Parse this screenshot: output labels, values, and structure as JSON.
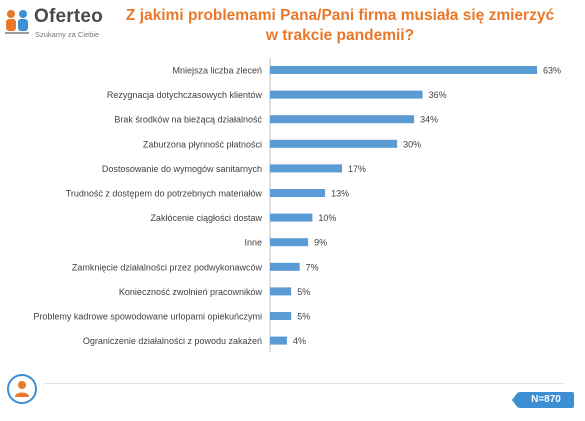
{
  "brand": {
    "name": "Oferteo",
    "tagline": "Szukamy za Ciebie"
  },
  "chart_data": {
    "type": "bar",
    "orientation": "horizontal",
    "title_lines": [
      "Z jakimi problemami Pana/Pani firma musiała się zmierzyć",
      "w trakcie pandemii?"
    ],
    "categories": [
      "Mniejsza liczba zleceń",
      "Rezygnacja dotychczasowych klientów",
      "Brak środków na bieżącą działalność",
      "Zaburzona płynność płatności",
      "Dostosowanie do wymogów sanitarnych",
      "Trudność z dostępem do potrzebnych materiałów",
      "Zakłócenie ciągłości dostaw",
      "Inne",
      "Zamknięcie działalności przez podwykonawców",
      "Konieczność zwolnień pracowników",
      "Problemy kadrowe spowodowane urlopami opiekuńczymi",
      "Ograniczenie działalności z powodu zakażeń"
    ],
    "values": [
      63,
      36,
      34,
      30,
      17,
      13,
      10,
      9,
      7,
      5,
      5,
      4
    ],
    "value_labels": [
      "63%",
      "36%",
      "34%",
      "30%",
      "17%",
      "13%",
      "10%",
      "9%",
      "7%",
      "5%",
      "5%",
      "4%"
    ],
    "xlim": [
      0,
      63
    ],
    "bar_color": "#5b9bd5",
    "baseline_color": "#bfbfbf"
  },
  "footer": {
    "sample_size": "N=870",
    "icon": "user-icon",
    "accent_color": "#3d8fd4"
  },
  "colors": {
    "title": "#e8782a"
  }
}
